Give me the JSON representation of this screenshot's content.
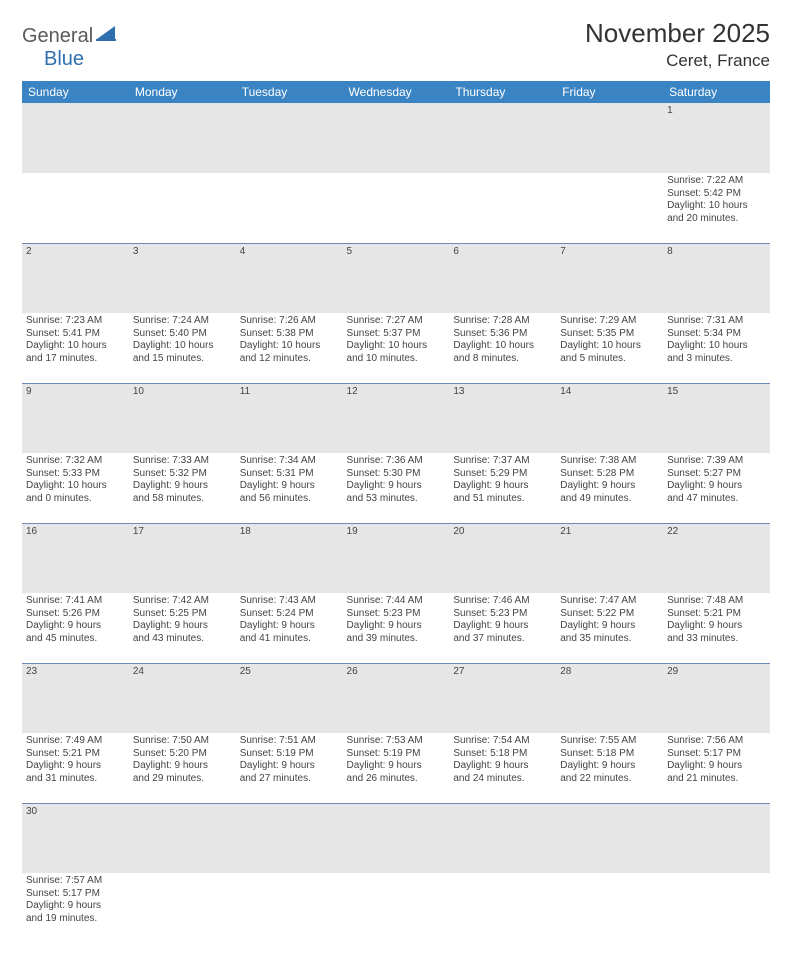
{
  "logo": {
    "text1": "General",
    "text2": "Blue"
  },
  "title": {
    "month": "November 2025",
    "location": "Ceret, France"
  },
  "colors": {
    "header_bg": "#3b84c4",
    "header_text": "#ffffff",
    "daynum_bg": "#e6e6e6",
    "row_divider": "#6a8cb5",
    "body_text": "#444444",
    "logo_gray": "#5a5a5a",
    "logo_blue": "#2f6fb0"
  },
  "weekdays": [
    "Sunday",
    "Monday",
    "Tuesday",
    "Wednesday",
    "Thursday",
    "Friday",
    "Saturday"
  ],
  "weeks": [
    {
      "nums": [
        "",
        "",
        "",
        "",
        "",
        "",
        "1"
      ],
      "cells": [
        null,
        null,
        null,
        null,
        null,
        null,
        {
          "sr": "Sunrise: 7:22 AM",
          "ss": "Sunset: 5:42 PM",
          "d1": "Daylight: 10 hours",
          "d2": "and 20 minutes."
        }
      ]
    },
    {
      "nums": [
        "2",
        "3",
        "4",
        "5",
        "6",
        "7",
        "8"
      ],
      "cells": [
        {
          "sr": "Sunrise: 7:23 AM",
          "ss": "Sunset: 5:41 PM",
          "d1": "Daylight: 10 hours",
          "d2": "and 17 minutes."
        },
        {
          "sr": "Sunrise: 7:24 AM",
          "ss": "Sunset: 5:40 PM",
          "d1": "Daylight: 10 hours",
          "d2": "and 15 minutes."
        },
        {
          "sr": "Sunrise: 7:26 AM",
          "ss": "Sunset: 5:38 PM",
          "d1": "Daylight: 10 hours",
          "d2": "and 12 minutes."
        },
        {
          "sr": "Sunrise: 7:27 AM",
          "ss": "Sunset: 5:37 PM",
          "d1": "Daylight: 10 hours",
          "d2": "and 10 minutes."
        },
        {
          "sr": "Sunrise: 7:28 AM",
          "ss": "Sunset: 5:36 PM",
          "d1": "Daylight: 10 hours",
          "d2": "and 8 minutes."
        },
        {
          "sr": "Sunrise: 7:29 AM",
          "ss": "Sunset: 5:35 PM",
          "d1": "Daylight: 10 hours",
          "d2": "and 5 minutes."
        },
        {
          "sr": "Sunrise: 7:31 AM",
          "ss": "Sunset: 5:34 PM",
          "d1": "Daylight: 10 hours",
          "d2": "and 3 minutes."
        }
      ]
    },
    {
      "nums": [
        "9",
        "10",
        "11",
        "12",
        "13",
        "14",
        "15"
      ],
      "cells": [
        {
          "sr": "Sunrise: 7:32 AM",
          "ss": "Sunset: 5:33 PM",
          "d1": "Daylight: 10 hours",
          "d2": "and 0 minutes."
        },
        {
          "sr": "Sunrise: 7:33 AM",
          "ss": "Sunset: 5:32 PM",
          "d1": "Daylight: 9 hours",
          "d2": "and 58 minutes."
        },
        {
          "sr": "Sunrise: 7:34 AM",
          "ss": "Sunset: 5:31 PM",
          "d1": "Daylight: 9 hours",
          "d2": "and 56 minutes."
        },
        {
          "sr": "Sunrise: 7:36 AM",
          "ss": "Sunset: 5:30 PM",
          "d1": "Daylight: 9 hours",
          "d2": "and 53 minutes."
        },
        {
          "sr": "Sunrise: 7:37 AM",
          "ss": "Sunset: 5:29 PM",
          "d1": "Daylight: 9 hours",
          "d2": "and 51 minutes."
        },
        {
          "sr": "Sunrise: 7:38 AM",
          "ss": "Sunset: 5:28 PM",
          "d1": "Daylight: 9 hours",
          "d2": "and 49 minutes."
        },
        {
          "sr": "Sunrise: 7:39 AM",
          "ss": "Sunset: 5:27 PM",
          "d1": "Daylight: 9 hours",
          "d2": "and 47 minutes."
        }
      ]
    },
    {
      "nums": [
        "16",
        "17",
        "18",
        "19",
        "20",
        "21",
        "22"
      ],
      "cells": [
        {
          "sr": "Sunrise: 7:41 AM",
          "ss": "Sunset: 5:26 PM",
          "d1": "Daylight: 9 hours",
          "d2": "and 45 minutes."
        },
        {
          "sr": "Sunrise: 7:42 AM",
          "ss": "Sunset: 5:25 PM",
          "d1": "Daylight: 9 hours",
          "d2": "and 43 minutes."
        },
        {
          "sr": "Sunrise: 7:43 AM",
          "ss": "Sunset: 5:24 PM",
          "d1": "Daylight: 9 hours",
          "d2": "and 41 minutes."
        },
        {
          "sr": "Sunrise: 7:44 AM",
          "ss": "Sunset: 5:23 PM",
          "d1": "Daylight: 9 hours",
          "d2": "and 39 minutes."
        },
        {
          "sr": "Sunrise: 7:46 AM",
          "ss": "Sunset: 5:23 PM",
          "d1": "Daylight: 9 hours",
          "d2": "and 37 minutes."
        },
        {
          "sr": "Sunrise: 7:47 AM",
          "ss": "Sunset: 5:22 PM",
          "d1": "Daylight: 9 hours",
          "d2": "and 35 minutes."
        },
        {
          "sr": "Sunrise: 7:48 AM",
          "ss": "Sunset: 5:21 PM",
          "d1": "Daylight: 9 hours",
          "d2": "and 33 minutes."
        }
      ]
    },
    {
      "nums": [
        "23",
        "24",
        "25",
        "26",
        "27",
        "28",
        "29"
      ],
      "cells": [
        {
          "sr": "Sunrise: 7:49 AM",
          "ss": "Sunset: 5:21 PM",
          "d1": "Daylight: 9 hours",
          "d2": "and 31 minutes."
        },
        {
          "sr": "Sunrise: 7:50 AM",
          "ss": "Sunset: 5:20 PM",
          "d1": "Daylight: 9 hours",
          "d2": "and 29 minutes."
        },
        {
          "sr": "Sunrise: 7:51 AM",
          "ss": "Sunset: 5:19 PM",
          "d1": "Daylight: 9 hours",
          "d2": "and 27 minutes."
        },
        {
          "sr": "Sunrise: 7:53 AM",
          "ss": "Sunset: 5:19 PM",
          "d1": "Daylight: 9 hours",
          "d2": "and 26 minutes."
        },
        {
          "sr": "Sunrise: 7:54 AM",
          "ss": "Sunset: 5:18 PM",
          "d1": "Daylight: 9 hours",
          "d2": "and 24 minutes."
        },
        {
          "sr": "Sunrise: 7:55 AM",
          "ss": "Sunset: 5:18 PM",
          "d1": "Daylight: 9 hours",
          "d2": "and 22 minutes."
        },
        {
          "sr": "Sunrise: 7:56 AM",
          "ss": "Sunset: 5:17 PM",
          "d1": "Daylight: 9 hours",
          "d2": "and 21 minutes."
        }
      ]
    },
    {
      "nums": [
        "30",
        "",
        "",
        "",
        "",
        "",
        ""
      ],
      "cells": [
        {
          "sr": "Sunrise: 7:57 AM",
          "ss": "Sunset: 5:17 PM",
          "d1": "Daylight: 9 hours",
          "d2": "and 19 minutes."
        },
        null,
        null,
        null,
        null,
        null,
        null
      ]
    }
  ]
}
